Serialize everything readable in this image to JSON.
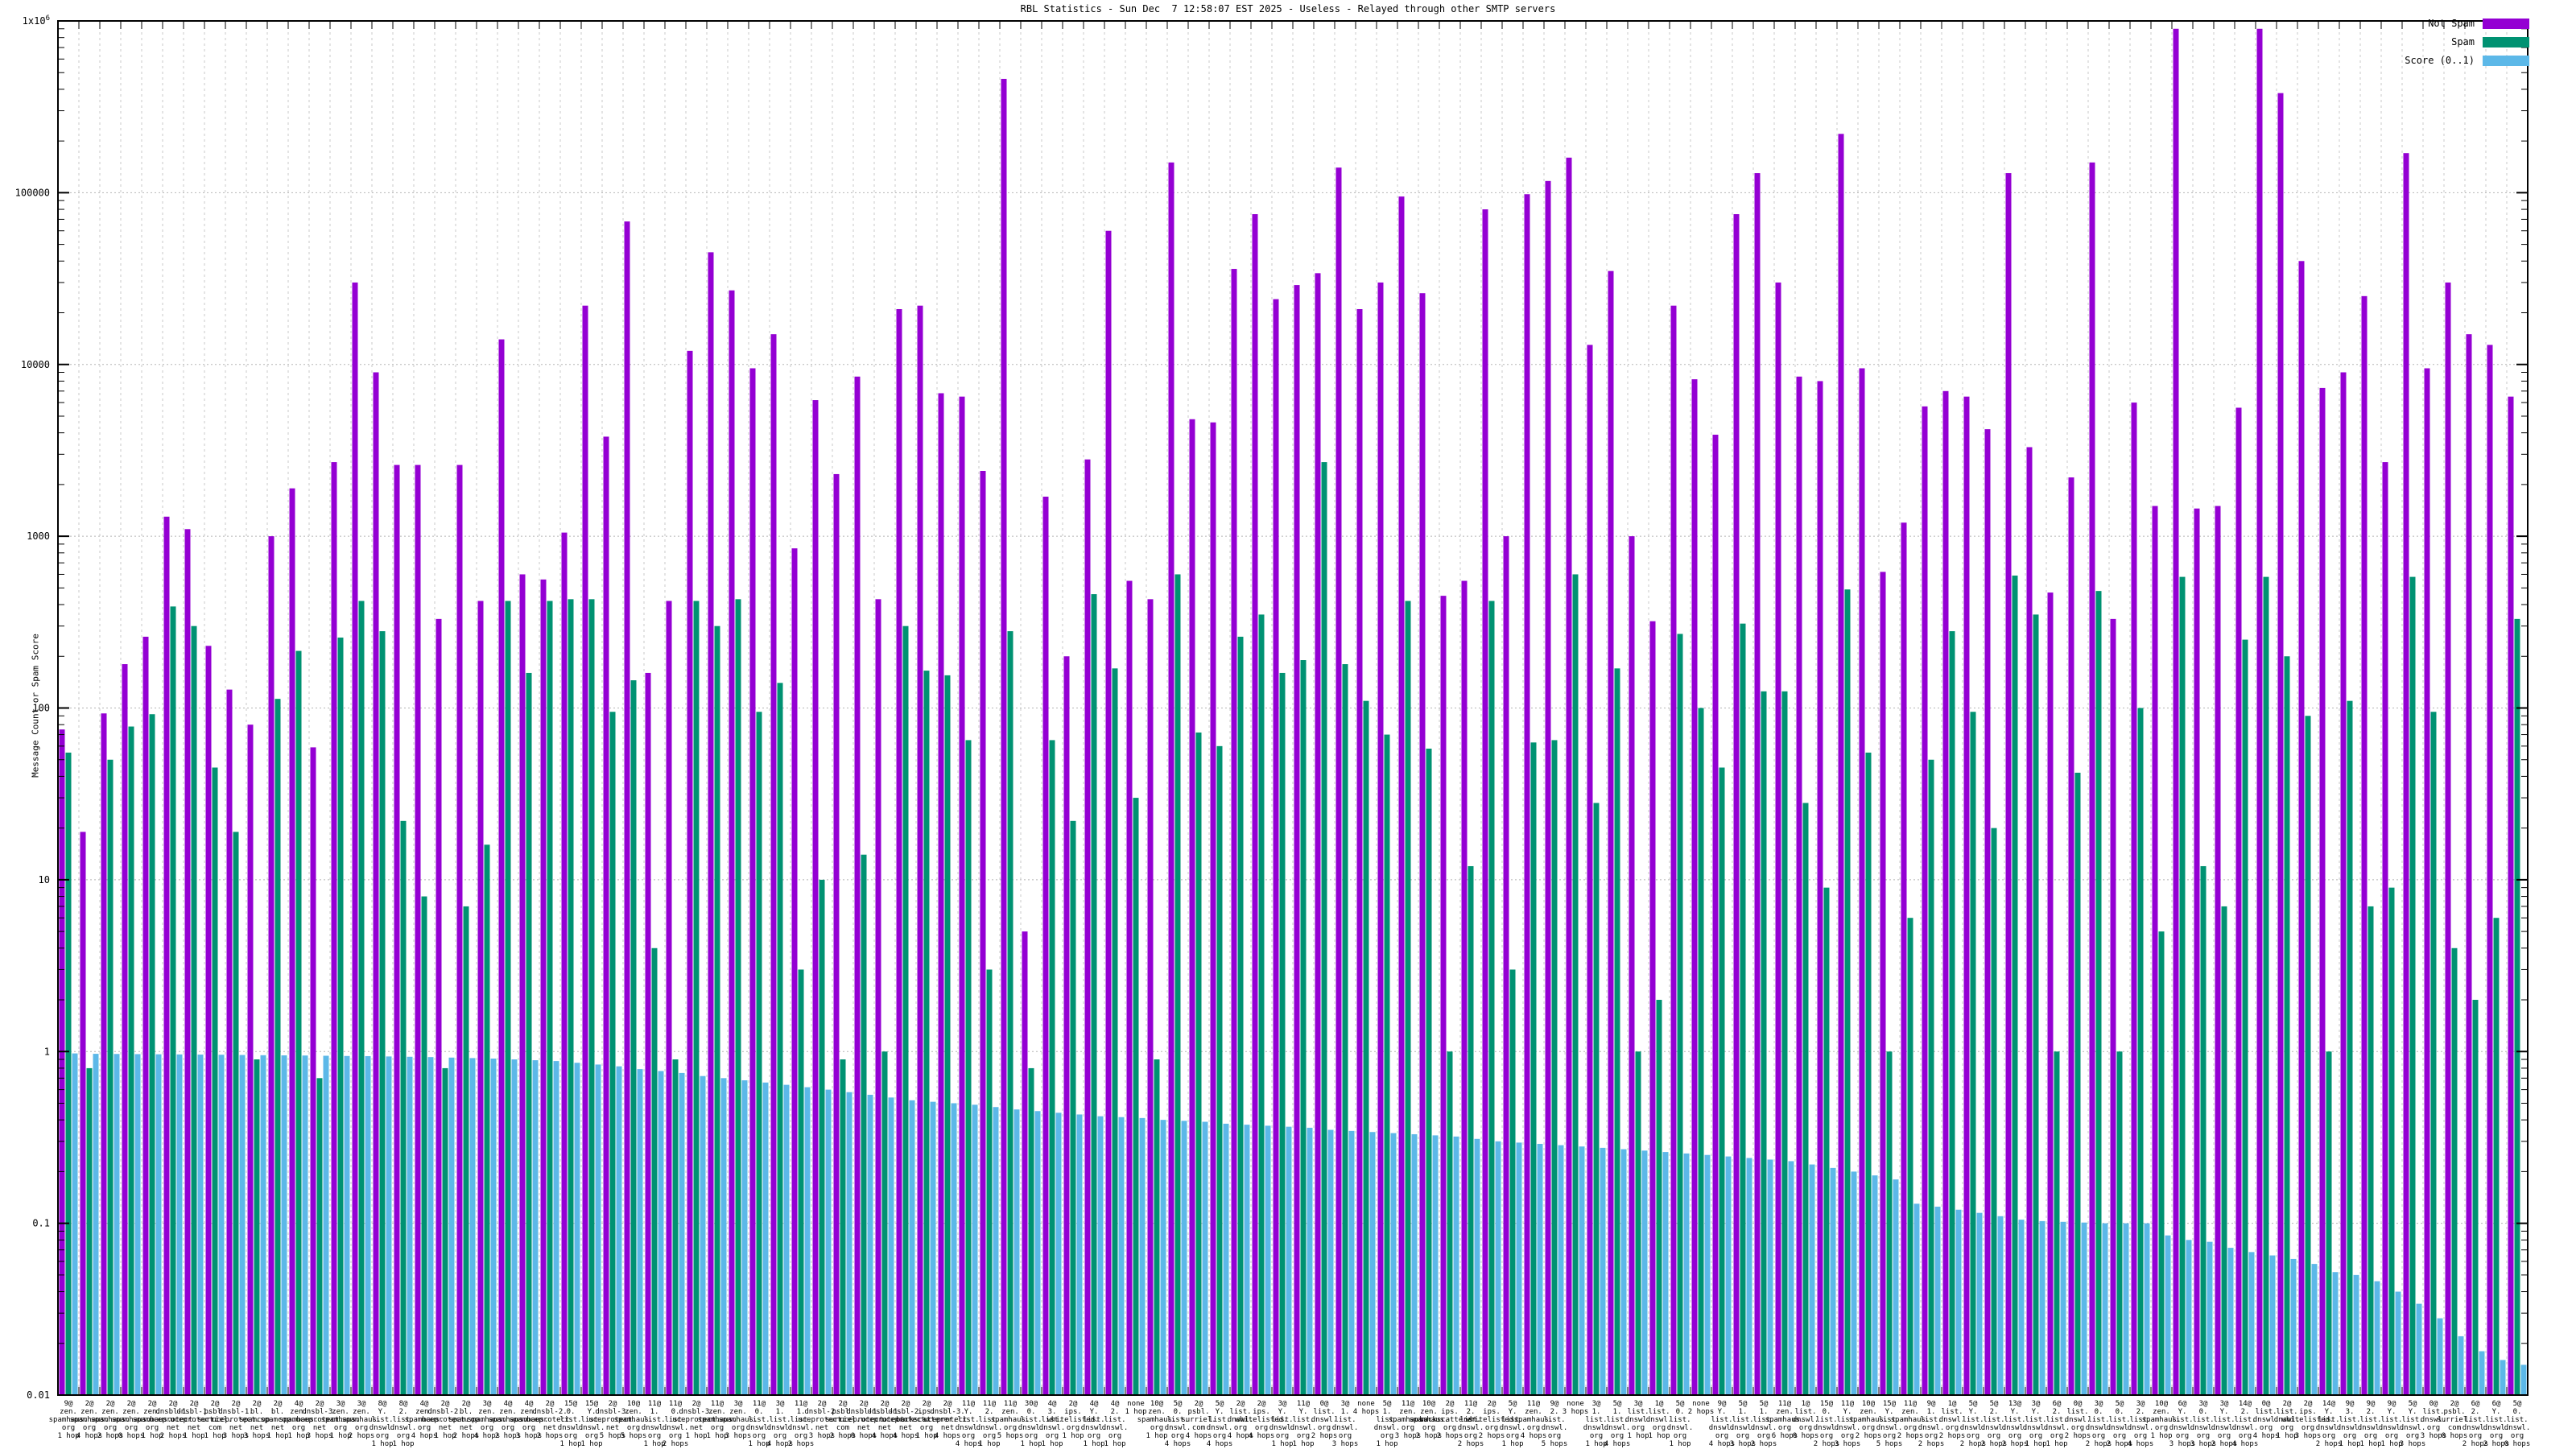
{
  "title": "RBL Statistics - Sun Dec  7 12:58:07 EST 2025 - Useless - Relayed through other SMTP servers",
  "y_axis": {
    "label": "Message Count or Spam Score",
    "min": 0.01,
    "max": 1000000,
    "ticks": [
      {
        "text": "1x10",
        "sup": "6",
        "value": 1000000
      },
      {
        "text": "100000",
        "value": 100000
      },
      {
        "text": "10000",
        "value": 10000
      },
      {
        "text": "1000",
        "value": 1000
      },
      {
        "text": "100",
        "value": 100
      },
      {
        "text": "10",
        "value": 10
      },
      {
        "text": "1",
        "value": 1
      },
      {
        "text": "0.1",
        "value": 0.1
      },
      {
        "text": "0.01",
        "value": 0.01
      }
    ]
  },
  "legend": [
    {
      "label": "Not Spam",
      "color": "#9400D3"
    },
    {
      "label": "Spam",
      "color": "#009272"
    },
    {
      "label": "Score (0..1)",
      "color": "#5CB8E8"
    }
  ],
  "colors": {
    "not_spam": "#9400D3",
    "spam": "#009272",
    "score": "#5CB8E8",
    "grid": "#b5b5b5",
    "axis": "#000000"
  },
  "chart_data": {
    "type": "bar",
    "scale": "log",
    "ylim": [
      0.01,
      1000000
    ],
    "grid": true,
    "legend_position": "top-right",
    "series_names": [
      "Not Spam",
      "Spam",
      "Score (0..1)"
    ],
    "groups": [
      {
        "rbl": "9@zen.spamhaus.org",
        "hops": "1 hop",
        "not_spam": 75,
        "spam": 55,
        "score": 0.975
      },
      {
        "rbl": "2@zen.spamhaus.org",
        "hops": "4 hops",
        "not_spam": 19,
        "spam": 0.8,
        "score": 0.97
      },
      {
        "rbl": "2@zen.spamhaus.org",
        "hops": "2 hops",
        "not_spam": 93,
        "spam": 50,
        "score": 0.968
      },
      {
        "rbl": "2@zen.spamhaus.org",
        "hops": "0 hops",
        "not_spam": 180,
        "spam": 78,
        "score": 0.966
      },
      {
        "rbl": "2@zen.spamhaus.org",
        "hops": "1 hop",
        "not_spam": 260,
        "spam": 92,
        "score": 0.964
      },
      {
        "rbl": "2@dnsbl-1.uceprotect.net",
        "hops": "2 hops",
        "not_spam": 1300,
        "spam": 390,
        "score": 0.962
      },
      {
        "rbl": "2@dnsbl-1.uceprotect.net",
        "hops": "1 hop",
        "not_spam": 1100,
        "spam": 300,
        "score": 0.96
      },
      {
        "rbl": "2@psbl.surriel.com",
        "hops": "1 hop",
        "not_spam": 230,
        "spam": 45,
        "score": 0.958
      },
      {
        "rbl": "2@dnsbl-1.uceprotect.net",
        "hops": "3 hops",
        "not_spam": 128,
        "spam": 19,
        "score": 0.955
      },
      {
        "rbl": "2@bl.spamcop.net",
        "hops": "3 hops",
        "not_spam": 80,
        "spam": 0.9,
        "score": 0.952
      },
      {
        "rbl": "2@bl.spamcop.net",
        "hops": "1 hop",
        "not_spam": 1000,
        "spam": 113,
        "score": 0.95
      },
      {
        "rbl": "4@zen.spamhaus.org",
        "hops": "1 hop",
        "not_spam": 1900,
        "spam": 215,
        "score": 0.948
      },
      {
        "rbl": "2@dnsbl-3.uceprotect.net",
        "hops": "3 hops",
        "not_spam": 59,
        "spam": 0.7,
        "score": 0.945
      },
      {
        "rbl": "3@zen.spamhaus.org",
        "hops": "1 hop",
        "not_spam": 2700,
        "spam": 257,
        "score": 0.942
      },
      {
        "rbl": "3@zen.spamhaus.org",
        "hops": "2 hops",
        "not_spam": 30000,
        "spam": 420,
        "score": 0.94
      },
      {
        "rbl": "8@Y.list.dnswl.org",
        "hops": "1 hop",
        "not_spam": 9000,
        "spam": 280,
        "score": 0.936
      },
      {
        "rbl": "8@2.list.dnswl.org",
        "hops": "1 hop",
        "not_spam": 2600,
        "spam": 22,
        "score": 0.932
      },
      {
        "rbl": "4@zen.spamhaus.org",
        "hops": "4 hops",
        "not_spam": 2600,
        "spam": 8,
        "score": 0.928
      },
      {
        "rbl": "2@dnsbl-2.uceprotect.net",
        "hops": "1 hop",
        "not_spam": 330,
        "spam": 0.8,
        "score": 0.922
      },
      {
        "rbl": "2@bl.spamcop.net",
        "hops": "2 hops",
        "not_spam": 2600,
        "spam": 7,
        "score": 0.916
      },
      {
        "rbl": "3@zen.spamhaus.org",
        "hops": "4 hops",
        "not_spam": 420,
        "spam": 16,
        "score": 0.91
      },
      {
        "rbl": "4@zen.spamhaus.org",
        "hops": "2 hops",
        "not_spam": 14000,
        "spam": 420,
        "score": 0.9
      },
      {
        "rbl": "4@zen.spamhaus.org",
        "hops": "3 hops",
        "not_spam": 600,
        "spam": 160,
        "score": 0.89
      },
      {
        "rbl": "2@dnsbl-2.uceprotect.net",
        "hops": "2 hops",
        "not_spam": 560,
        "spam": 420,
        "score": 0.88
      },
      {
        "rbl": "15@0.list.dnswl.org",
        "hops": "1 hop",
        "not_spam": 1050,
        "spam": 430,
        "score": 0.86
      },
      {
        "rbl": "15@Y.list.dnswl.org",
        "hops": "1 hop",
        "not_spam": 22000,
        "spam": 430,
        "score": 0.84
      },
      {
        "rbl": "2@dnsbl-3.uceprotect.net",
        "hops": "5 hops",
        "not_spam": 3800,
        "spam": 95,
        "score": 0.82
      },
      {
        "rbl": "10@zen.spamhaus.org",
        "hops": "5 hops",
        "not_spam": 68000,
        "spam": 145,
        "score": 0.79
      },
      {
        "rbl": "11@1.list.dnswl.org",
        "hops": "1 hop",
        "not_spam": 160,
        "spam": 4,
        "score": 0.77
      },
      {
        "rbl": "11@0.list.dnswl.org",
        "hops": "2 hops",
        "not_spam": 420,
        "spam": 0.9,
        "score": 0.75
      },
      {
        "rbl": "2@dnsbl-3.uceprotect.net",
        "hops": "1 hop",
        "not_spam": 12000,
        "spam": 420,
        "score": 0.72
      },
      {
        "rbl": "11@zen.spamhaus.org",
        "hops": "1 hop",
        "not_spam": 45000,
        "spam": 300,
        "score": 0.7
      },
      {
        "rbl": "3@zen.spamhaus.org",
        "hops": "3 hops",
        "not_spam": 27000,
        "spam": 430,
        "score": 0.68
      },
      {
        "rbl": "11@0.list.dnswl.org",
        "hops": "1 hop",
        "not_spam": 9500,
        "spam": 95,
        "score": 0.66
      },
      {
        "rbl": "3@1.list.dnswl.org",
        "hops": "4 hops",
        "not_spam": 15000,
        "spam": 140,
        "score": 0.64
      },
      {
        "rbl": "11@1.list.dnswl.org",
        "hops": "2 hops",
        "not_spam": 850,
        "spam": 3,
        "score": 0.62
      },
      {
        "rbl": "2@dnsbl-2.uceprotect.net",
        "hops": "3 hops",
        "not_spam": 6200,
        "spam": 10,
        "score": 0.6
      },
      {
        "rbl": "2@psbl.surriel.com",
        "hops": "2 hops",
        "not_spam": 2300,
        "spam": 0.9,
        "score": 0.58
      },
      {
        "rbl": "2@dnsbl-1.uceprotect.net",
        "hops": "0 hops",
        "not_spam": 8500,
        "spam": 14,
        "score": 0.56
      },
      {
        "rbl": "2@dnsbl-1.uceprotect.net",
        "hops": "4 hops",
        "not_spam": 430,
        "spam": 1,
        "score": 0.54
      },
      {
        "rbl": "2@dnsbl-2.uceprotect.net",
        "hops": "4 hops",
        "not_spam": 21000,
        "spam": 300,
        "score": 0.52
      },
      {
        "rbl": "2@ips.backscatterer.org",
        "hops": "1 hop",
        "not_spam": 22000,
        "spam": 165,
        "score": 0.51
      },
      {
        "rbl": "2@dnsbl-3.uceprotect.net",
        "hops": "4 hops",
        "not_spam": 6800,
        "spam": 155,
        "score": 0.5
      },
      {
        "rbl": "11@Y.list.dnswl.org",
        "hops": "4 hops",
        "not_spam": 6500,
        "spam": 65,
        "score": 0.49
      },
      {
        "rbl": "11@2.list.dnswl.org",
        "hops": "1 hop",
        "not_spam": 2400,
        "spam": 3,
        "score": 0.475
      },
      {
        "rbl": "11@zen.spamhaus.org",
        "hops": "5 hops",
        "not_spam": 460000,
        "spam": 280,
        "score": 0.46
      },
      {
        "rbl": "30@0.list.dnswl.org",
        "hops": "1 hop",
        "not_spam": 5,
        "spam": 0.8,
        "score": 0.45
      },
      {
        "rbl": "4@3.list.dnswl.org",
        "hops": "1 hop",
        "not_spam": 1700,
        "spam": 65,
        "score": 0.44
      },
      {
        "rbl": "2@ips.whitelisted.org",
        "hops": "1 hop",
        "not_spam": 200,
        "spam": 22,
        "score": 0.43
      },
      {
        "rbl": "4@Y.list.dnswl.org",
        "hops": "1 hop",
        "not_spam": 2800,
        "spam": 460,
        "score": 0.42
      },
      {
        "rbl": "4@2.list.dnswl.org",
        "hops": "1 hop",
        "not_spam": 60000,
        "spam": 170,
        "score": 0.415
      },
      {
        "rbl": "none",
        "hops": "1 hop",
        "not_spam": 550,
        "spam": 30,
        "score": 0.41
      },
      {
        "rbl": "10@zen.spamhaus.org",
        "hops": "1 hop",
        "not_spam": 430,
        "spam": 0.9,
        "score": 0.4
      },
      {
        "rbl": "5@0.list.dnswl.org",
        "hops": "4 hops",
        "not_spam": 150000,
        "spam": 600,
        "score": 0.395
      },
      {
        "rbl": "2@psbl.surriel.com",
        "hops": "4 hops",
        "not_spam": 4800,
        "spam": 72,
        "score": 0.39
      },
      {
        "rbl": "5@Y.list.dnswl.org",
        "hops": "4 hops",
        "not_spam": 4600,
        "spam": 60,
        "score": 0.38
      },
      {
        "rbl": "2@list.dnswl.org",
        "hops": "4 hops",
        "not_spam": 36000,
        "spam": 260,
        "score": 0.375
      },
      {
        "rbl": "2@ips.whitelisted.org",
        "hops": "4 hops",
        "not_spam": 75000,
        "spam": 350,
        "score": 0.37
      },
      {
        "rbl": "3@Y.list.dnswl.org",
        "hops": "1 hop",
        "not_spam": 24000,
        "spam": 160,
        "score": 0.365
      },
      {
        "rbl": "11@Y.list.dnswl.org",
        "hops": "1 hop",
        "not_spam": 29000,
        "spam": 190,
        "score": 0.36
      },
      {
        "rbl": "0@list.dnswl.org",
        "hops": "2 hops",
        "not_spam": 34000,
        "spam": 2700,
        "score": 0.35
      },
      {
        "rbl": "3@1.list.dnswl.org",
        "hops": "3 hops",
        "not_spam": 140000,
        "spam": 180,
        "score": 0.345
      },
      {
        "rbl": "none",
        "hops": "4 hops",
        "not_spam": 21000,
        "spam": 110,
        "score": 0.34
      },
      {
        "rbl": "5@1.list.dnswl.org",
        "hops": "1 hop",
        "not_spam": 30000,
        "spam": 70,
        "score": 0.335
      },
      {
        "rbl": "11@zen.spamhaus.org",
        "hops": "3 hops",
        "not_spam": 95000,
        "spam": 420,
        "score": 0.33
      },
      {
        "rbl": "10@zen.spamhaus.org",
        "hops": "2 hops",
        "not_spam": 26000,
        "spam": 58,
        "score": 0.325
      },
      {
        "rbl": "2@ips.backscatterer.org",
        "hops": "2 hops",
        "not_spam": 450,
        "spam": 1,
        "score": 0.32
      },
      {
        "rbl": "11@2.list.dnswl.org",
        "hops": "2 hops",
        "not_spam": 550,
        "spam": 12,
        "score": 0.31
      },
      {
        "rbl": "2@ips.whitelisted.org",
        "hops": "2 hops",
        "not_spam": 80000,
        "spam": 420,
        "score": 0.3
      },
      {
        "rbl": "5@Y.list.dnswl.org",
        "hops": "1 hop",
        "not_spam": 1000,
        "spam": 3,
        "score": 0.295
      },
      {
        "rbl": "11@zen.spamhaus.org",
        "hops": "4 hops",
        "not_spam": 98000,
        "spam": 63,
        "score": 0.29
      },
      {
        "rbl": "9@2.list.dnswl.org",
        "hops": "5 hops",
        "not_spam": 117000,
        "spam": 65,
        "score": 0.285
      },
      {
        "rbl": "none",
        "hops": "3 hops",
        "not_spam": 160000,
        "spam": 600,
        "score": 0.28
      },
      {
        "rbl": "3@1.list.dnswl.org",
        "hops": "1 hop",
        "not_spam": 13000,
        "spam": 28,
        "score": 0.275
      },
      {
        "rbl": "5@1.list.dnswl.org",
        "hops": "4 hops",
        "not_spam": 35000,
        "spam": 170,
        "score": 0.27
      },
      {
        "rbl": "3@list.dnswl.org",
        "hops": "1 hop",
        "not_spam": 1000,
        "spam": 1,
        "score": 0.265
      },
      {
        "rbl": "1@list.dnswl.org",
        "hops": "1 hop",
        "not_spam": 320,
        "spam": 2,
        "score": 0.26
      },
      {
        "rbl": "5@0.list.dnswl.org",
        "hops": "1 hop",
        "not_spam": 22000,
        "spam": 270,
        "score": 0.255
      },
      {
        "rbl": "none",
        "hops": "2 hops",
        "not_spam": 8200,
        "spam": 100,
        "score": 0.25
      },
      {
        "rbl": "9@Y.list.dnswl.org",
        "hops": "4 hops",
        "not_spam": 3900,
        "spam": 45,
        "score": 0.245
      },
      {
        "rbl": "5@1.list.dnswl.org",
        "hops": "3 hops",
        "not_spam": 75000,
        "spam": 310,
        "score": 0.24
      },
      {
        "rbl": "5@1.list.dnswl.org",
        "hops": "2 hops",
        "not_spam": 130000,
        "spam": 125,
        "score": 0.235
      },
      {
        "rbl": "11@zen.spamhaus.org",
        "hops": "6 hops",
        "not_spam": 30000,
        "spam": 125,
        "score": 0.23
      },
      {
        "rbl": "1@list.dnswl.org",
        "hops": "0 hops",
        "not_spam": 8500,
        "spam": 28,
        "score": 0.22
      },
      {
        "rbl": "15@0.list.dnswl.org",
        "hops": "2 hops",
        "not_spam": 8000,
        "spam": 9,
        "score": 0.21
      },
      {
        "rbl": "11@Y.list.dnswl.org",
        "hops": "3 hops",
        "not_spam": 220000,
        "spam": 490,
        "score": 0.2
      },
      {
        "rbl": "10@zen.spamhaus.org",
        "hops": "2 hops",
        "not_spam": 9500,
        "spam": 55,
        "score": 0.19
      },
      {
        "rbl": "15@Y.list.dnswl.org",
        "hops": "5 hops",
        "not_spam": 620,
        "spam": 1,
        "score": 0.18
      },
      {
        "rbl": "11@zen.spamhaus.org",
        "hops": "2 hops",
        "not_spam": 1200,
        "spam": 6,
        "score": 0.13
      },
      {
        "rbl": "9@1.list.dnswl.org",
        "hops": "2 hops",
        "not_spam": 5700,
        "spam": 50,
        "score": 0.125
      },
      {
        "rbl": "1@list.dnswl.org",
        "hops": "2 hops",
        "not_spam": 7000,
        "spam": 280,
        "score": 0.12
      },
      {
        "rbl": "5@Y.list.dnswl.org",
        "hops": "2 hops",
        "not_spam": 6500,
        "spam": 95,
        "score": 0.115
      },
      {
        "rbl": "5@2.list.dnswl.org",
        "hops": "2 hops",
        "not_spam": 4200,
        "spam": 20,
        "score": 0.11
      },
      {
        "rbl": "13@Y.list.dnswl.org",
        "hops": "2 hops",
        "not_spam": 130000,
        "spam": 590,
        "score": 0.105
      },
      {
        "rbl": "3@Y.list.dnswl.org",
        "hops": "1 hop",
        "not_spam": 3300,
        "spam": 350,
        "score": 0.103
      },
      {
        "rbl": "6@2.list.dnswl.org",
        "hops": "1 hop",
        "not_spam": 470,
        "spam": 1,
        "score": 0.102
      },
      {
        "rbl": "0@list.dnswl.org",
        "hops": "2 hops",
        "not_spam": 2200,
        "spam": 42,
        "score": 0.101
      },
      {
        "rbl": "3@0.list.dnswl.org",
        "hops": "2 hops",
        "not_spam": 150000,
        "spam": 480,
        "score": 0.1
      },
      {
        "rbl": "5@0.list.dnswl.org",
        "hops": "2 hops",
        "not_spam": 330,
        "spam": 1,
        "score": 0.1
      },
      {
        "rbl": "3@2.list.dnswl.org",
        "hops": "4 hops",
        "not_spam": 6000,
        "spam": 100,
        "score": 0.1
      },
      {
        "rbl": "10@zen.spamhaus.org",
        "hops": "1 hop",
        "not_spam": 1500,
        "spam": 5,
        "score": 0.085
      },
      {
        "rbl": "6@Y.list.dnswl.org",
        "hops": "3 hops",
        "not_spam": 900000,
        "spam": 580,
        "score": 0.08
      },
      {
        "rbl": "3@0.list.dnswl.org",
        "hops": "3 hops",
        "not_spam": 1450,
        "spam": 12,
        "score": 0.078
      },
      {
        "rbl": "3@Y.list.dnswl.org",
        "hops": "2 hops",
        "not_spam": 1500,
        "spam": 7,
        "score": 0.072
      },
      {
        "rbl": "14@2.list.dnswl.org",
        "hops": "4 hops",
        "not_spam": 5600,
        "spam": 250,
        "score": 0.068
      },
      {
        "rbl": "0@list.dnswl.org",
        "hops": "4 hops",
        "not_spam": 900000,
        "spam": 580,
        "score": 0.065
      },
      {
        "rbl": "2@list.dnswl.org",
        "hops": "1 hop",
        "not_spam": 380000,
        "spam": 200,
        "score": 0.062
      },
      {
        "rbl": "2@ips.whitelisted.org",
        "hops": "3 hops",
        "not_spam": 40000,
        "spam": 90,
        "score": 0.058
      },
      {
        "rbl": "14@Y.list.dnswl.org",
        "hops": "2 hops",
        "not_spam": 7300,
        "spam": 1,
        "score": 0.052
      },
      {
        "rbl": "9@3.list.dnswl.org",
        "hops": "1 hop",
        "not_spam": 9000,
        "spam": 110,
        "score": 0.05
      },
      {
        "rbl": "9@2.list.dnswl.org",
        "hops": "1 hop",
        "not_spam": 25000,
        "spam": 7,
        "score": 0.046
      },
      {
        "rbl": "9@Y.list.dnswl.org",
        "hops": "1 hop",
        "not_spam": 2700,
        "spam": 9,
        "score": 0.04
      },
      {
        "rbl": "5@Y.list.dnswl.org",
        "hops": "3 hops",
        "not_spam": 170000,
        "spam": 580,
        "score": 0.034
      },
      {
        "rbl": "0@list.dnswl.org",
        "hops": "3 hops",
        "not_spam": 9500,
        "spam": 95,
        "score": 0.028
      },
      {
        "rbl": "2@psbl.surriel.com",
        "hops": "0 hops",
        "not_spam": 30000,
        "spam": 4,
        "score": 0.022
      },
      {
        "rbl": "6@2.list.dnswl.org",
        "hops": "2 hops",
        "not_spam": 15000,
        "spam": 2,
        "score": 0.018
      },
      {
        "rbl": "6@Y.list.dnswl.org",
        "hops": "2 hops",
        "not_spam": 13000,
        "spam": 6,
        "score": 0.016
      },
      {
        "rbl": "5@0.list.dnswl.org",
        "hops": "0 hops",
        "not_spam": 6500,
        "spam": 330,
        "score": 0.015
      }
    ]
  }
}
